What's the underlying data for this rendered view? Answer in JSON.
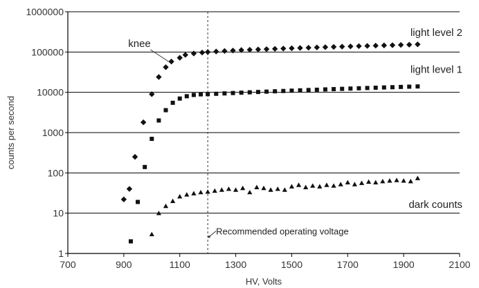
{
  "chart_data": {
    "type": "scatter",
    "title": "",
    "xlabel": "HV, Volts",
    "ylabel": "counts per second",
    "xlim": [
      700,
      2100
    ],
    "ylim": [
      1,
      1000000
    ],
    "yscale": "log",
    "xticks": [
      700,
      900,
      1100,
      1300,
      1500,
      1700,
      1900,
      2100
    ],
    "xtick_labels": [
      "700",
      "900",
      "1100",
      "1300",
      "1500",
      "1700",
      "1900",
      "2100"
    ],
    "yticks": [
      1,
      10,
      100,
      1000,
      10000,
      100000,
      1000000
    ],
    "ytick_labels": [
      "1",
      "10",
      "100",
      "1000",
      "10000",
      "100000",
      "1000000"
    ],
    "grid": "horizontal",
    "series": [
      {
        "name": "light level 2",
        "marker": "diamond",
        "points": [
          [
            900,
            22
          ],
          [
            920,
            40
          ],
          [
            940,
            250
          ],
          [
            970,
            1800
          ],
          [
            1000,
            9000
          ],
          [
            1025,
            24000
          ],
          [
            1050,
            42000
          ],
          [
            1070,
            58000
          ],
          [
            1100,
            72000
          ],
          [
            1120,
            85000
          ],
          [
            1150,
            92000
          ],
          [
            1180,
            97000
          ],
          [
            1200,
            100000
          ],
          [
            1230,
            103000
          ],
          [
            1260,
            106000
          ],
          [
            1290,
            109000
          ],
          [
            1320,
            112000
          ],
          [
            1350,
            114000
          ],
          [
            1380,
            116000
          ],
          [
            1410,
            118000
          ],
          [
            1440,
            120000
          ],
          [
            1470,
            122000
          ],
          [
            1500,
            124000
          ],
          [
            1530,
            126000
          ],
          [
            1560,
            128000
          ],
          [
            1590,
            130000
          ],
          [
            1620,
            132000
          ],
          [
            1650,
            134000
          ],
          [
            1680,
            136000
          ],
          [
            1710,
            138000
          ],
          [
            1740,
            140000
          ],
          [
            1770,
            142000
          ],
          [
            1800,
            144000
          ],
          [
            1830,
            146000
          ],
          [
            1860,
            148000
          ],
          [
            1890,
            150000
          ],
          [
            1920,
            152000
          ],
          [
            1950,
            155000
          ]
        ]
      },
      {
        "name": "light level 1",
        "marker": "square",
        "points": [
          [
            925,
            2
          ],
          [
            950,
            19
          ],
          [
            975,
            140
          ],
          [
            1000,
            700
          ],
          [
            1025,
            2000
          ],
          [
            1050,
            3600
          ],
          [
            1075,
            5500
          ],
          [
            1100,
            7000
          ],
          [
            1125,
            8000
          ],
          [
            1150,
            8600
          ],
          [
            1175,
            8900
          ],
          [
            1200,
            9000
          ],
          [
            1230,
            9200
          ],
          [
            1260,
            9400
          ],
          [
            1290,
            9600
          ],
          [
            1320,
            9800
          ],
          [
            1350,
            10000
          ],
          [
            1380,
            10200
          ],
          [
            1410,
            10400
          ],
          [
            1440,
            10600
          ],
          [
            1470,
            10800
          ],
          [
            1500,
            11000
          ],
          [
            1530,
            11200
          ],
          [
            1560,
            11400
          ],
          [
            1590,
            11600
          ],
          [
            1620,
            11800
          ],
          [
            1650,
            12000
          ],
          [
            1680,
            12200
          ],
          [
            1710,
            12400
          ],
          [
            1740,
            12600
          ],
          [
            1770,
            12800
          ],
          [
            1800,
            13000
          ],
          [
            1830,
            13200
          ],
          [
            1860,
            13400
          ],
          [
            1890,
            13600
          ],
          [
            1920,
            13800
          ],
          [
            1950,
            14000
          ]
        ]
      },
      {
        "name": "dark counts",
        "marker": "triangle",
        "points": [
          [
            1000,
            3
          ],
          [
            1025,
            10
          ],
          [
            1050,
            15
          ],
          [
            1075,
            20
          ],
          [
            1100,
            26
          ],
          [
            1125,
            29
          ],
          [
            1150,
            31
          ],
          [
            1175,
            33
          ],
          [
            1200,
            34
          ],
          [
            1225,
            36
          ],
          [
            1250,
            38
          ],
          [
            1275,
            40
          ],
          [
            1300,
            38
          ],
          [
            1325,
            42
          ],
          [
            1350,
            33
          ],
          [
            1375,
            44
          ],
          [
            1400,
            42
          ],
          [
            1425,
            38
          ],
          [
            1450,
            40
          ],
          [
            1475,
            38
          ],
          [
            1500,
            46
          ],
          [
            1525,
            50
          ],
          [
            1550,
            44
          ],
          [
            1575,
            48
          ],
          [
            1600,
            46
          ],
          [
            1625,
            50
          ],
          [
            1650,
            48
          ],
          [
            1675,
            52
          ],
          [
            1700,
            58
          ],
          [
            1725,
            52
          ],
          [
            1750,
            56
          ],
          [
            1775,
            60
          ],
          [
            1800,
            58
          ],
          [
            1825,
            62
          ],
          [
            1850,
            64
          ],
          [
            1875,
            66
          ],
          [
            1900,
            64
          ],
          [
            1925,
            62
          ],
          [
            1950,
            74
          ]
        ]
      }
    ],
    "reference_line": {
      "x": 1200,
      "style": "dashed"
    },
    "annotations": {
      "knee": {
        "text": "knee",
        "label_at": [
          990,
          170000
        ],
        "arrow_to": [
          1070,
          58000
        ]
      },
      "recommended": {
        "text": "Recommended operating voltage",
        "label_at": [
          1210,
          3.6
        ],
        "arrow_to": [
          1200,
          2.6
        ]
      }
    }
  }
}
